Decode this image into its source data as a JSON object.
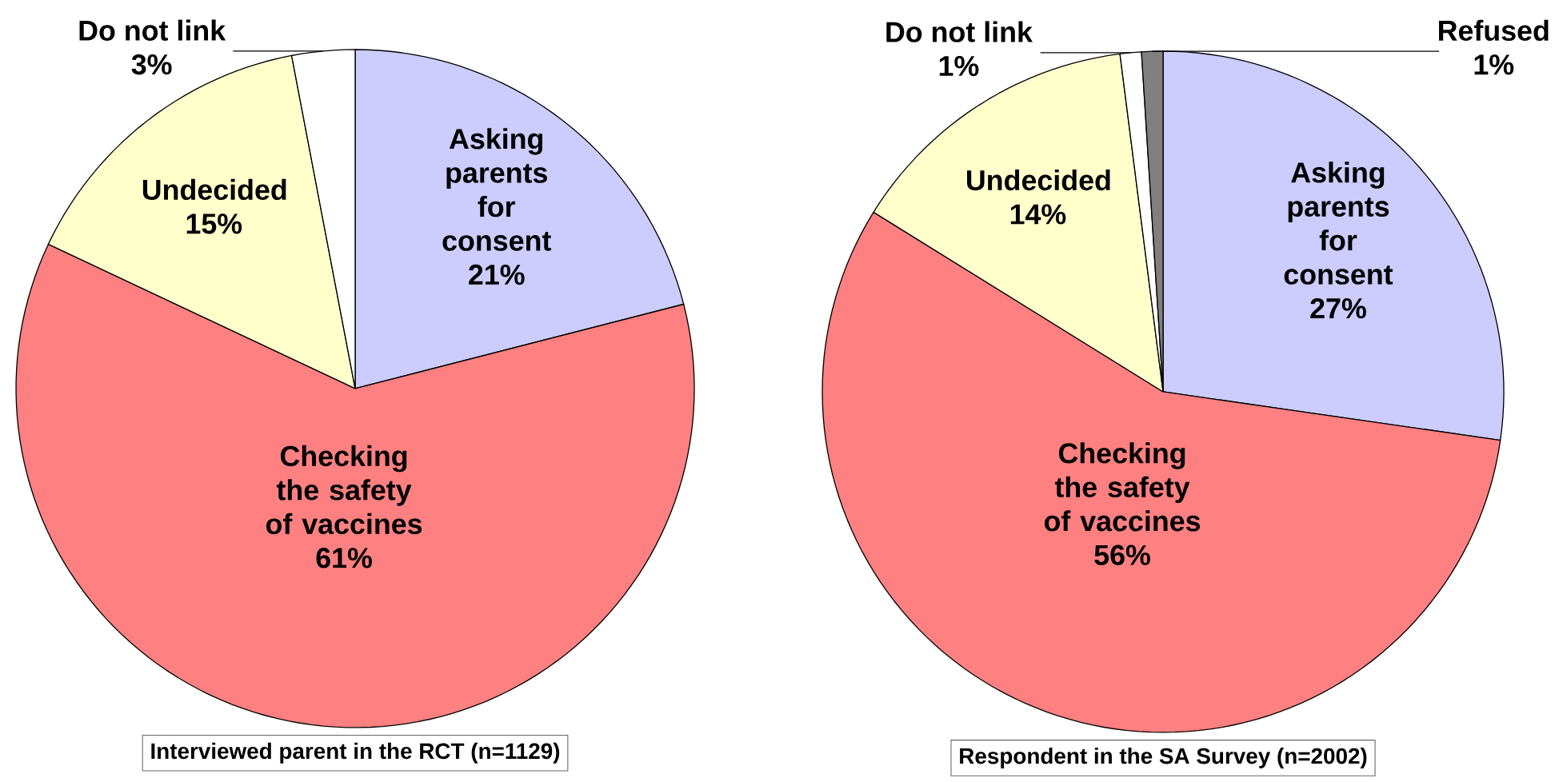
{
  "chart_data": [
    {
      "type": "pie",
      "categories": [
        "Asking parents for consent",
        "Checking the safety of vaccines",
        "Undecided",
        "Do not link"
      ],
      "values": [
        21,
        61,
        15,
        3
      ],
      "value_labels": [
        "21%",
        "61%",
        "15%",
        "3%"
      ],
      "colors": [
        "#ccccff",
        "#ff8080",
        "#ffffcc",
        "#ffffff"
      ],
      "annotations": [
        "Interviewed parent in the RCT (n=1129)"
      ]
    },
    {
      "type": "pie",
      "categories": [
        "Asking parents for consent",
        "Checking the safety of vaccines",
        "Undecided",
        "Do not link",
        "Refused"
      ],
      "values": [
        27,
        56,
        14,
        1,
        1
      ],
      "value_labels": [
        "27%",
        "56%",
        "14%",
        "1%",
        "1%"
      ],
      "colors": [
        "#ccccff",
        "#ff8080",
        "#ffffcc",
        "#ffffff",
        "#808080"
      ],
      "annotations": [
        "Respondent in the SA Survey (n=2002)"
      ]
    }
  ]
}
